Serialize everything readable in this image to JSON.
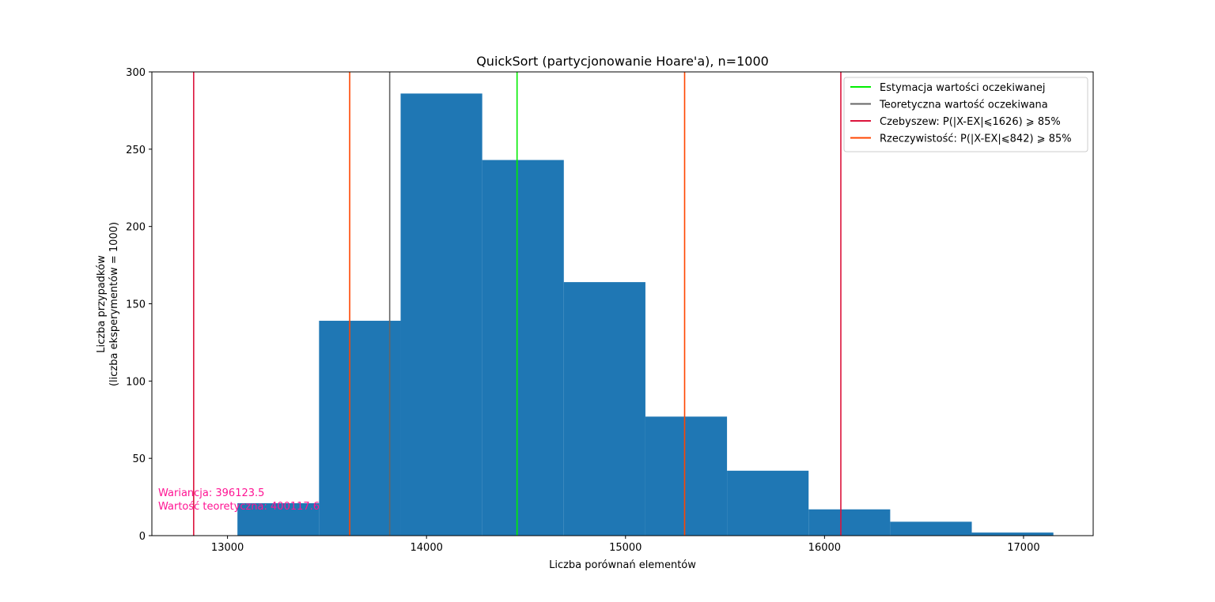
{
  "chart_data": {
    "type": "histogram",
    "title": "QuickSort (partycjonowanie Hoare'a), n=1000",
    "xlabel": "Liczba porównań elementów",
    "ylabel_lines": [
      "Liczba przypadków",
      "(liczba eksperymentów = 1000)"
    ],
    "xlim": [
      12620,
      17350
    ],
    "ylim": [
      0,
      300
    ],
    "xticks": [
      13000,
      14000,
      15000,
      16000,
      17000
    ],
    "yticks": [
      0,
      50,
      100,
      150,
      200,
      250,
      300
    ],
    "bar_color": "#1f77b4",
    "bins": [
      {
        "x0": 13050,
        "x1": 13460,
        "count": 21
      },
      {
        "x0": 13460,
        "x1": 13870,
        "count": 139
      },
      {
        "x0": 13870,
        "x1": 14280,
        "count": 286
      },
      {
        "x0": 14280,
        "x1": 14690,
        "count": 243
      },
      {
        "x0": 14690,
        "x1": 15100,
        "count": 164
      },
      {
        "x0": 15100,
        "x1": 15510,
        "count": 77
      },
      {
        "x0": 15510,
        "x1": 15920,
        "count": 42
      },
      {
        "x0": 15920,
        "x1": 16330,
        "count": 17
      },
      {
        "x0": 16330,
        "x1": 16740,
        "count": 9
      },
      {
        "x0": 16740,
        "x1": 17150,
        "count": 2
      }
    ],
    "vlines": [
      {
        "name": "Estymacja wartości oczekiwanej",
        "x": 14455,
        "color": "#00ee00",
        "legend": true
      },
      {
        "name": "Teoretyczna wartość oczekiwana",
        "x": 13815,
        "color": "#666666",
        "legend": true
      },
      {
        "name": "Czebyszew: P(|X-EX|⩽1626) ⩾ 85%",
        "x": 12830,
        "color": "#dc143c",
        "legend": true
      },
      {
        "name": "Czebyszew: P(|X-EX|⩽1626) ⩾ 85%",
        "x": 16082,
        "color": "#dc143c",
        "legend": false
      },
      {
        "name": "Rzeczywistość: P(|X-EX|⩽842) ⩾ 85%",
        "x": 13614,
        "color": "#ff4500",
        "legend": true
      },
      {
        "name": "Rzeczywistość: P(|X-EX|⩽842) ⩾ 85%",
        "x": 15297,
        "color": "#ff4500",
        "legend": false
      }
    ],
    "legend_position": "top-right",
    "annotations": [
      {
        "text": "Wariancja: 396123.5",
        "color": "#ff1493"
      },
      {
        "text": "Wartość teoretyczna: 400117.6",
        "color": "#ff1493"
      }
    ]
  }
}
